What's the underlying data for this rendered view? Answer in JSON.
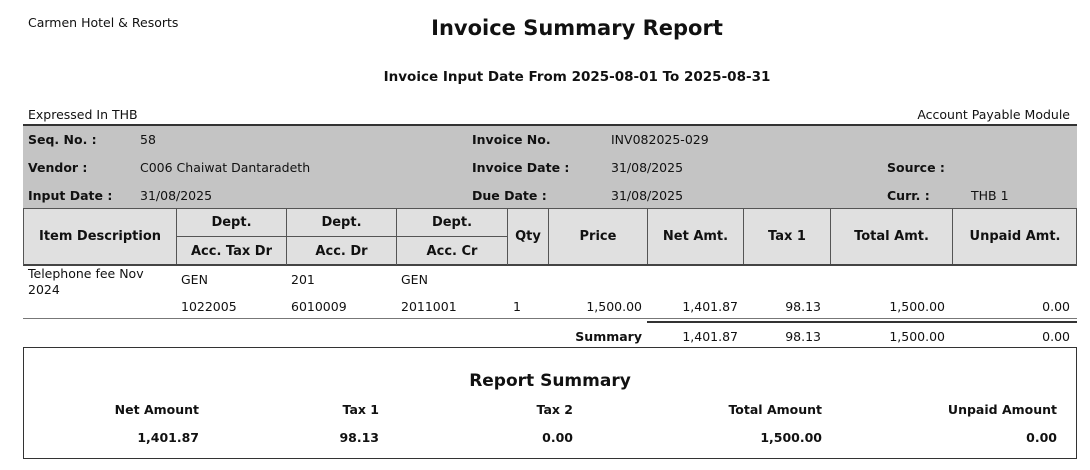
{
  "company": "Carmen Hotel & Resorts",
  "title": "Invoice Summary Report",
  "subtitle": "Invoice Input Date From 2025-08-01 To 2025-08-31",
  "expressed": "Expressed In THB",
  "module": "Account Payable Module",
  "info": {
    "seq_label": "Seq. No. :",
    "seq": "58",
    "vendor_label": "Vendor :",
    "vendor": "C006 Chaiwat Dantaradeth",
    "input_label": "Input Date :",
    "input": "31/08/2025",
    "invno_label": "Invoice No.",
    "invno": "INV082025-029",
    "invdate_label": "Invoice Date :",
    "invdate": "31/08/2025",
    "due_label": "Due Date :",
    "due": "31/08/2025",
    "source_label": "Source :",
    "source": "",
    "curr_label": "Curr. :",
    "curr": "THB 1"
  },
  "columns": {
    "item": "Item Description",
    "dept1": "Dept.",
    "dept2": "Dept.",
    "dept3": "Dept.",
    "acc_tax": "Acc. Tax Dr",
    "acc_dr": "Acc. Dr",
    "acc_cr": "Acc. Cr",
    "qty": "Qty",
    "price": "Price",
    "net": "Net Amt.",
    "tax1": "Tax 1",
    "total": "Total Amt.",
    "unpaid": "Unpaid Amt."
  },
  "rows": [
    {
      "desc": "Telephone fee Nov 2024",
      "dept1": "GEN",
      "dept2": "201",
      "dept3": "GEN",
      "acc_tax": "1022005",
      "acc_dr": "6010009",
      "acc_cr": "2011001",
      "qty": "1",
      "price": "1,500.00",
      "net": "1,401.87",
      "tax1": "98.13",
      "total": "1,500.00",
      "unpaid": "0.00"
    }
  ],
  "summary": {
    "label": "Summary",
    "net": "1,401.87",
    "tax1": "98.13",
    "total": "1,500.00",
    "unpaid": "0.00"
  },
  "report_summary": {
    "title": "Report Summary",
    "labels": [
      "Net Amount",
      "Tax 1",
      "Tax 2",
      "Total Amount",
      "Unpaid Amount"
    ],
    "values": [
      "1,401.87",
      "98.13",
      "0.00",
      "1,500.00",
      "0.00"
    ]
  }
}
